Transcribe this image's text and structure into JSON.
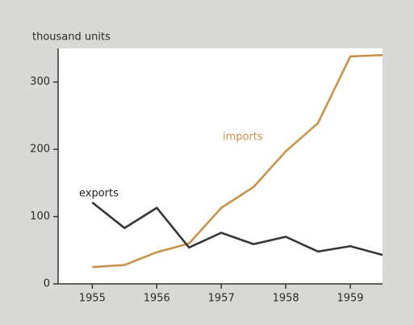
{
  "chart_data": {
    "type": "line",
    "ylabel": "thousand units",
    "x": [
      1955,
      1955.5,
      1956,
      1956.5,
      1957,
      1957.5,
      1958,
      1958.5,
      1959,
      1959.5
    ],
    "series": [
      {
        "name": "imports",
        "color": "#c9924b",
        "values": [
          25,
          28,
          47,
          60,
          113,
          144,
          197,
          239,
          338,
          340
        ]
      },
      {
        "name": "exports",
        "color": "#363636",
        "values": [
          121,
          83,
          113,
          54,
          76,
          59,
          70,
          48,
          56,
          43
        ]
      }
    ],
    "xlim": [
      1954.47,
      1959.5
    ],
    "xticks": [
      1955,
      1956,
      1957,
      1958,
      1959
    ],
    "ylim": [
      0,
      350
    ],
    "yticks": [
      0,
      100,
      200,
      300
    ]
  }
}
